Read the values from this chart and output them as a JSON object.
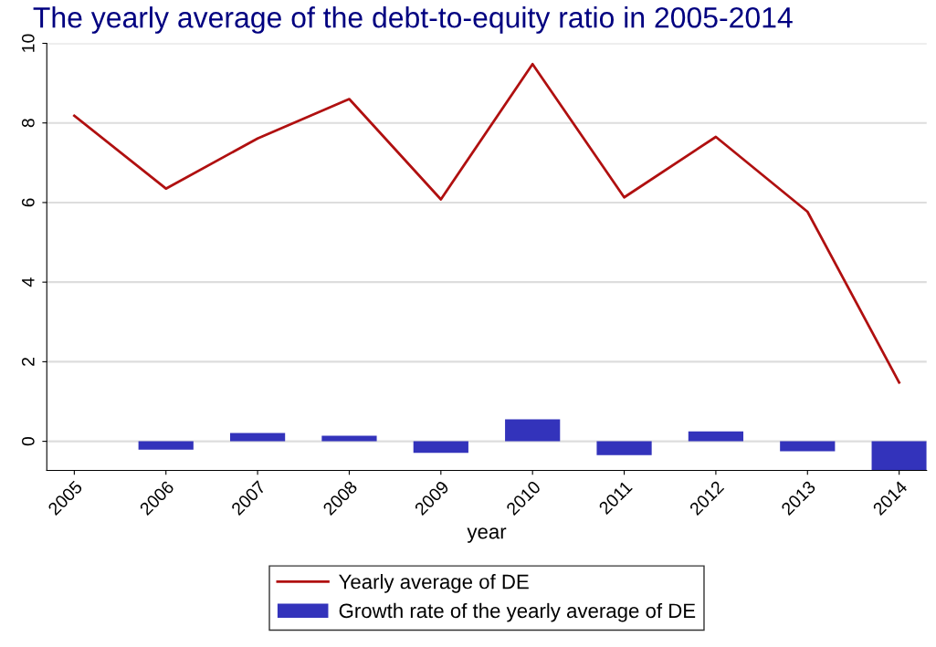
{
  "chart_data": {
    "type": "line",
    "title": "The yearly average of the debt-to-equity ratio in 2005-2014",
    "xlabel": "year",
    "x": [
      2005,
      2006,
      2007,
      2008,
      2009,
      2010,
      2011,
      2012,
      2013,
      2014
    ],
    "series": [
      {
        "name": "Yearly average of DE",
        "type": "line",
        "color": "#b01010",
        "values": [
          8.18,
          6.35,
          7.61,
          8.6,
          6.08,
          9.48,
          6.13,
          7.65,
          5.77,
          1.48
        ]
      },
      {
        "name": "Growth rate of the yearly average of DE",
        "type": "bar",
        "color": "#3333bb",
        "values": [
          null,
          -0.21,
          0.21,
          0.14,
          -0.29,
          0.55,
          -0.35,
          0.25,
          -0.25,
          -0.73
        ]
      }
    ],
    "xlim": [
      2004.7,
      2014.3
    ],
    "xticks": [
      2005,
      2006,
      2007,
      2008,
      2009,
      2010,
      2011,
      2012,
      2013,
      2014
    ],
    "ylim": [
      -0.73,
      10
    ],
    "yticks": [
      0,
      2,
      4,
      6,
      8,
      10
    ],
    "grid": "y",
    "legend": "bottom",
    "marker": "none",
    "line_style": "solid"
  }
}
